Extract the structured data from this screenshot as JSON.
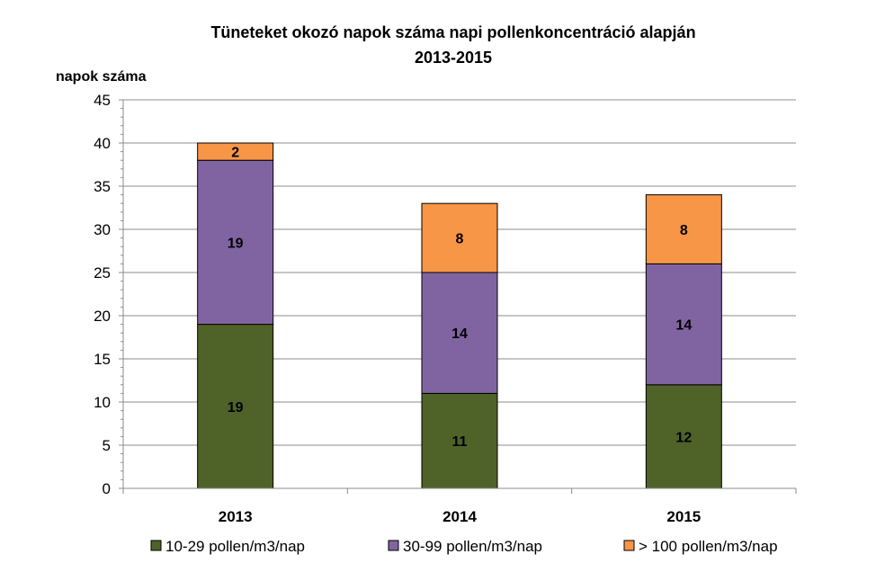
{
  "chart_data": {
    "type": "bar",
    "stacked": true,
    "title": "Tüneteket okozó napok száma napi pollenkoncentráció alapján",
    "subtitle": "2013-2015",
    "ylabel": "napok száma",
    "xlabel": "",
    "ylim": [
      0,
      45
    ],
    "ytick_step": 5,
    "grid": true,
    "legend_position": "bottom",
    "categories": [
      "2013",
      "2014",
      "2015"
    ],
    "series": [
      {
        "name": "10-29 pollen/m3/nap",
        "values": [
          19,
          11,
          12
        ],
        "color": "#4f6228"
      },
      {
        "name": "30-99 pollen/m3/nap",
        "values": [
          19,
          14,
          14
        ],
        "color": "#8064a2"
      },
      {
        "name": "> 100 pollen/m3/nap",
        "values": [
          2,
          8,
          8
        ],
        "color": "#f79646"
      }
    ]
  }
}
